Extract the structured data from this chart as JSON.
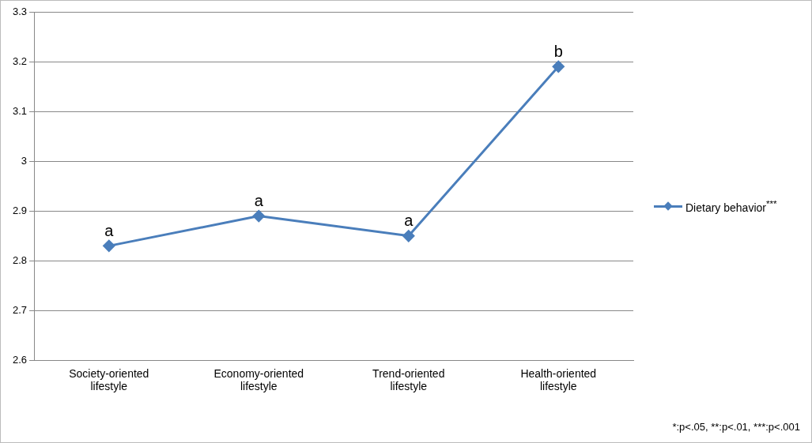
{
  "chart_data": {
    "type": "line",
    "categories": [
      "Society-oriented lifestyle",
      "Economy-oriented lifestyle",
      "Trend-oriented lifestyle",
      "Health-oriented lifestyle"
    ],
    "series": [
      {
        "name": "Dietary behavior$^{***}$",
        "color": "#4a7ebb",
        "values": [
          2.83,
          2.89,
          2.85,
          3.19
        ]
      }
    ],
    "ylim": [
      2.6,
      3.3
    ],
    "yticks": [
      2.6,
      2.7,
      2.8,
      2.9,
      3,
      3.1,
      3.2,
      3.3
    ],
    "grid": "y",
    "legend": "right",
    "marker": "diamond",
    "line_style": "solid",
    "annotations": [
      {
        "text": "a",
        "x": "Society-oriented lifestyle",
        "y": 2.83
      },
      {
        "text": "a",
        "x": "Economy-oriented lifestyle",
        "y": 2.89
      },
      {
        "text": "a",
        "x": "Trend-oriented lifestyle",
        "y": 2.85
      },
      {
        "text": "b",
        "x": "Health-oriented lifestyle",
        "y": 3.19
      },
      "*:p<.05, **:p<.01, ***:p<.001"
    ]
  }
}
